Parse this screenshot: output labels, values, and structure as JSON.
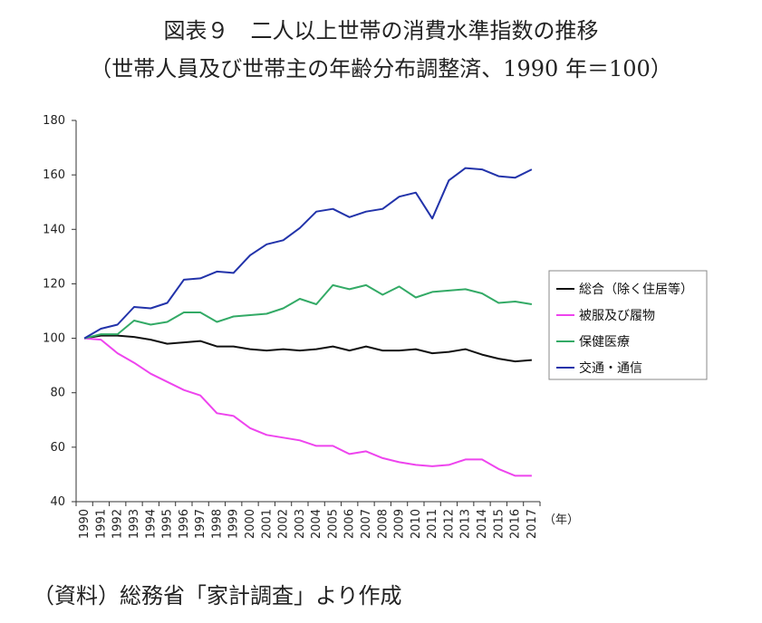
{
  "title": "図表９　二人以上世帯の消費水準指数の推移",
  "subtitle": "（世帯人員及び世帯主の年齢分布調整済、1990 年＝100）",
  "source": "（資料）総務省「家計調査」より作成",
  "chart_data": {
    "type": "line",
    "title": "図表９　二人以上世帯の消費水準指数の推移",
    "subtitle": "（世帯人員及び世帯主の年齢分布調整済、1990 年＝100）",
    "x_unit_label": "（年）",
    "ylim": [
      40,
      180
    ],
    "yticks": [
      40,
      60,
      80,
      100,
      120,
      140,
      160,
      180
    ],
    "grid": false,
    "legend_position": "right",
    "categories": [
      "1990",
      "1991",
      "1992",
      "1993",
      "1994",
      "1995",
      "1996",
      "1997",
      "1998",
      "1999",
      "2000",
      "2001",
      "2002",
      "2003",
      "2004",
      "2005",
      "2006",
      "2007",
      "2008",
      "2009",
      "2010",
      "2011",
      "2012",
      "2013",
      "2014",
      "2015",
      "2016",
      "2017"
    ],
    "series": [
      {
        "name": "総合（除く住居等）",
        "color": "#111111",
        "values": [
          100,
          101,
          101,
          100.5,
          99.5,
          98,
          98.5,
          99,
          97,
          97,
          96,
          95.5,
          96,
          95.5,
          96,
          97,
          95.5,
          97,
          95.5,
          95.5,
          96,
          94.5,
          95,
          96,
          94,
          92.5,
          91.5,
          92
        ]
      },
      {
        "name": "被服及び履物",
        "color": "#ee44ee",
        "values": [
          100,
          99.5,
          94.5,
          91,
          87,
          84,
          81,
          79,
          72.5,
          71.5,
          67,
          64.5,
          63.5,
          62.5,
          60.5,
          60.5,
          57.5,
          58.5,
          56,
          54.5,
          53.5,
          53,
          53.5,
          55.5,
          55.5,
          52,
          49.5,
          49.5
        ]
      },
      {
        "name": "保健医療",
        "color": "#33aa66",
        "values": [
          100,
          101.5,
          101.5,
          106.5,
          105,
          106,
          109.5,
          109.5,
          106,
          108,
          108.5,
          109,
          111,
          114.5,
          112.5,
          119.5,
          118,
          119.5,
          116,
          119,
          115,
          117,
          117.5,
          118,
          116.5,
          113,
          113.5,
          112.5
        ]
      },
      {
        "name": "交通・通信",
        "color": "#2233aa",
        "values": [
          100,
          103.5,
          105,
          111.5,
          111,
          113,
          121.5,
          122,
          124.5,
          124,
          130.5,
          134.5,
          136,
          140.5,
          146.5,
          147.5,
          144.5,
          146.5,
          147.5,
          152,
          153.5,
          144,
          158,
          162.5,
          162,
          159.5,
          159,
          162
        ]
      }
    ]
  }
}
